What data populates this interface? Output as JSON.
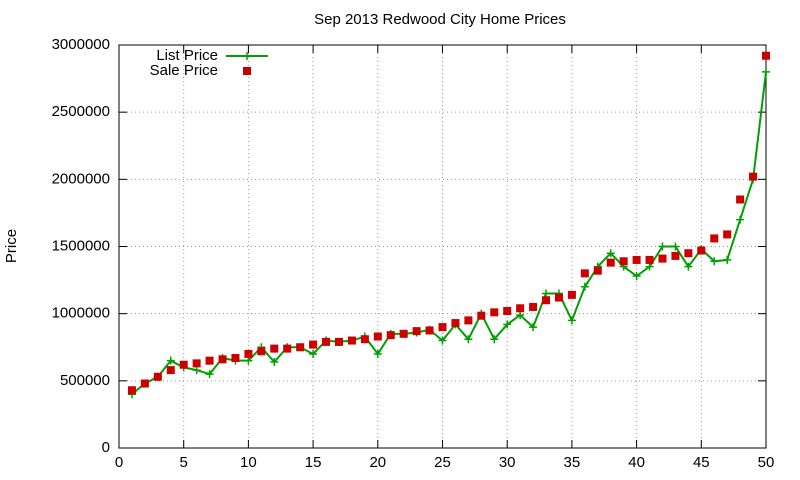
{
  "chart_data": {
    "type": "line",
    "title": "Sep 2013 Redwood City Home Prices",
    "y_label": "Price",
    "x": [
      1,
      2,
      3,
      4,
      5,
      6,
      7,
      8,
      9,
      10,
      11,
      12,
      13,
      14,
      15,
      16,
      17,
      18,
      19,
      20,
      21,
      22,
      23,
      24,
      25,
      26,
      27,
      28,
      29,
      30,
      31,
      32,
      33,
      34,
      35,
      36,
      37,
      38,
      39,
      40,
      41,
      42,
      43,
      44,
      45,
      46,
      47,
      48,
      49,
      50
    ],
    "series": [
      {
        "name": "List Price",
        "color": "#00a000",
        "marker": "plus",
        "line": true,
        "values": [
          400000,
          480000,
          530000,
          650000,
          600000,
          580000,
          550000,
          670000,
          650000,
          650000,
          750000,
          640000,
          750000,
          750000,
          700000,
          800000,
          790000,
          800000,
          830000,
          700000,
          850000,
          850000,
          860000,
          880000,
          800000,
          920000,
          810000,
          1000000,
          810000,
          920000,
          990000,
          900000,
          1150000,
          1150000,
          950000,
          1200000,
          1350000,
          1450000,
          1350000,
          1280000,
          1350000,
          1500000,
          1500000,
          1350000,
          1480000,
          1390000,
          1400000,
          1700000,
          2000000,
          2800000
        ]
      },
      {
        "name": "Sale Price",
        "color": "#cc0000",
        "marker": "square",
        "line": false,
        "values": [
          430000,
          480000,
          530000,
          580000,
          620000,
          630000,
          650000,
          660000,
          670000,
          700000,
          720000,
          740000,
          740000,
          750000,
          770000,
          790000,
          790000,
          800000,
          810000,
          830000,
          840000,
          850000,
          870000,
          875000,
          900000,
          930000,
          950000,
          985000,
          1010000,
          1020000,
          1040000,
          1050000,
          1100000,
          1120000,
          1140000,
          1300000,
          1320000,
          1380000,
          1390000,
          1400000,
          1400000,
          1410000,
          1430000,
          1450000,
          1470000,
          1560000,
          1590000,
          1850000,
          2020000,
          2920000
        ]
      }
    ],
    "xlim": [
      0,
      50
    ],
    "xticks": [
      0,
      5,
      10,
      15,
      20,
      25,
      30,
      35,
      40,
      45,
      50
    ],
    "ylim": [
      0,
      3000000
    ],
    "yticks": [
      0,
      500000,
      1000000,
      1500000,
      2000000,
      2500000,
      3000000
    ],
    "grid": true,
    "legend": "top-left"
  }
}
